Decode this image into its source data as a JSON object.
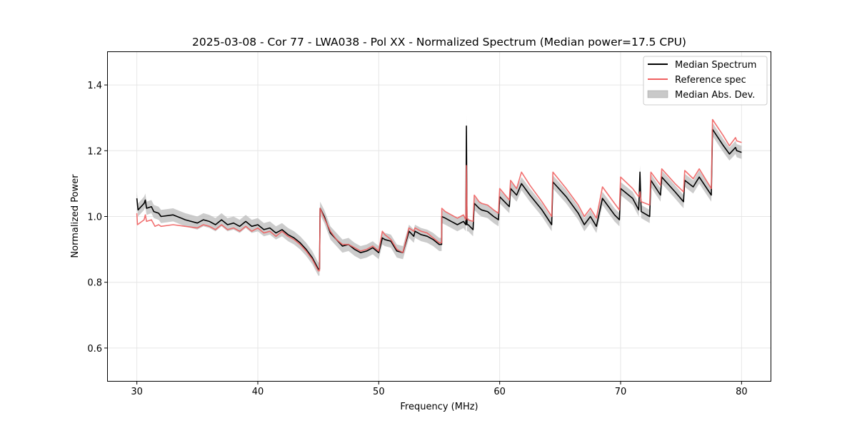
{
  "chart_data": {
    "type": "line",
    "title": "2025-03-08 - Cor 77 - LWA038 - Pol XX - Normalized Spectrum (Median power=17.5 CPU)",
    "xlabel": "Frequency (MHz)",
    "ylabel": "Normalized Power",
    "xlim": [
      27.6,
      82.4
    ],
    "ylim": [
      0.5,
      1.5
    ],
    "xticks": [
      30,
      40,
      50,
      60,
      70,
      80
    ],
    "yticks": [
      0.6,
      0.8,
      1.0,
      1.2,
      1.4
    ],
    "xtick_labels": [
      "30",
      "40",
      "50",
      "60",
      "70",
      "80"
    ],
    "ytick_labels": [
      "0.6",
      "0.8",
      "1.0",
      "1.2",
      "1.4"
    ],
    "grid": true,
    "legend_position": "top-right",
    "colors": {
      "median": "#000000",
      "reference": "#f06060",
      "mad": "#bbbbbb"
    },
    "series": [
      {
        "name": "Median Spectrum",
        "x": [
          30.0,
          30.1,
          30.6,
          30.7,
          30.8,
          31.2,
          31.4,
          31.8,
          32.0,
          33.0,
          34.0,
          35.0,
          35.5,
          36.0,
          36.5,
          37.0,
          37.5,
          38.0,
          38.5,
          39.0,
          39.5,
          40.0,
          40.5,
          41.0,
          41.5,
          42.0,
          42.5,
          43.0,
          43.5,
          44.0,
          44.5,
          45.0,
          45.1,
          45.15,
          45.5,
          46.0,
          46.5,
          47.0,
          47.5,
          48.0,
          48.5,
          49.0,
          49.5,
          50.0,
          50.3,
          50.5,
          51.0,
          51.5,
          52.0,
          52.5,
          52.9,
          53.0,
          53.5,
          54.0,
          54.5,
          55.0,
          55.2,
          55.21,
          55.5,
          56.0,
          56.5,
          57.0,
          57.2,
          57.25,
          57.3,
          57.4,
          57.8,
          57.9,
          58.3,
          58.5,
          59.0,
          59.5,
          59.9,
          60.0,
          60.8,
          60.9,
          61.4,
          61.8,
          62.5,
          63.5,
          64.3,
          64.4,
          65.5,
          66.5,
          67.0,
          67.5,
          68.0,
          68.5,
          69.5,
          69.9,
          70.0,
          71.0,
          71.5,
          71.6,
          71.7,
          72.4,
          72.5,
          73.3,
          73.4,
          74.5,
          75.2,
          75.3,
          76.0,
          76.5,
          77.5,
          77.6,
          78.5,
          79.0,
          79.5,
          79.6,
          80.0
        ],
        "values": [
          1.055,
          1.02,
          1.04,
          1.05,
          1.025,
          1.03,
          1.015,
          1.01,
          1.0,
          1.005,
          0.99,
          0.98,
          0.99,
          0.985,
          0.975,
          0.99,
          0.975,
          0.98,
          0.97,
          0.985,
          0.97,
          0.975,
          0.96,
          0.965,
          0.95,
          0.96,
          0.945,
          0.935,
          0.92,
          0.9,
          0.875,
          0.84,
          0.84,
          1.025,
          1.0,
          0.95,
          0.93,
          0.91,
          0.915,
          0.9,
          0.89,
          0.895,
          0.905,
          0.89,
          0.935,
          0.93,
          0.925,
          0.895,
          0.89,
          0.955,
          0.94,
          0.955,
          0.945,
          0.94,
          0.93,
          0.915,
          0.915,
          1.0,
          0.995,
          0.985,
          0.975,
          0.985,
          0.975,
          1.275,
          0.975,
          0.975,
          0.96,
          1.04,
          1.025,
          1.02,
          1.015,
          1.0,
          0.99,
          1.06,
          1.03,
          1.085,
          1.065,
          1.1,
          1.065,
          1.02,
          0.975,
          1.105,
          1.06,
          1.01,
          0.975,
          1.0,
          0.97,
          1.055,
          1.005,
          0.99,
          1.085,
          1.055,
          1.02,
          1.135,
          1.015,
          1.0,
          1.11,
          1.065,
          1.12,
          1.075,
          1.045,
          1.11,
          1.09,
          1.12,
          1.065,
          1.265,
          1.215,
          1.19,
          1.21,
          1.2,
          1.195
        ]
      },
      {
        "name": "Reference spec",
        "x": [
          30.0,
          30.05,
          30.6,
          30.7,
          30.8,
          31.2,
          31.5,
          31.8,
          32.0,
          33.0,
          34.0,
          35.0,
          35.5,
          36.0,
          36.5,
          37.0,
          37.5,
          38.0,
          38.5,
          39.0,
          39.5,
          40.0,
          40.5,
          41.0,
          41.5,
          42.0,
          42.5,
          43.0,
          43.5,
          44.0,
          44.5,
          45.0,
          45.1,
          45.15,
          45.5,
          46.0,
          46.5,
          47.0,
          47.5,
          48.0,
          48.5,
          49.0,
          49.5,
          50.0,
          50.3,
          50.5,
          51.0,
          51.5,
          52.0,
          52.5,
          52.9,
          53.0,
          53.5,
          54.0,
          54.5,
          55.0,
          55.2,
          55.21,
          55.5,
          56.0,
          56.5,
          57.0,
          57.2,
          57.25,
          57.3,
          57.4,
          57.8,
          57.9,
          58.3,
          58.5,
          59.0,
          59.5,
          59.9,
          60.0,
          60.8,
          60.9,
          61.4,
          61.8,
          62.5,
          63.5,
          64.3,
          64.4,
          65.5,
          66.5,
          67.0,
          67.5,
          68.0,
          68.5,
          69.5,
          69.9,
          70.0,
          71.0,
          71.5,
          71.6,
          71.7,
          72.4,
          72.5,
          73.3,
          73.4,
          74.5,
          75.2,
          75.3,
          76.0,
          76.5,
          77.5,
          77.6,
          78.5,
          79.0,
          79.5,
          79.6,
          80.0
        ],
        "values": [
          1.01,
          0.975,
          0.99,
          1.005,
          0.985,
          0.99,
          0.97,
          0.975,
          0.97,
          0.975,
          0.97,
          0.965,
          0.975,
          0.97,
          0.96,
          0.975,
          0.96,
          0.965,
          0.955,
          0.97,
          0.955,
          0.965,
          0.95,
          0.955,
          0.94,
          0.955,
          0.94,
          0.93,
          0.915,
          0.895,
          0.87,
          0.835,
          0.835,
          1.025,
          0.995,
          0.955,
          0.93,
          0.915,
          0.915,
          0.905,
          0.895,
          0.9,
          0.91,
          0.895,
          0.955,
          0.945,
          0.93,
          0.9,
          0.89,
          0.965,
          0.955,
          0.965,
          0.955,
          0.95,
          0.935,
          0.92,
          0.92,
          1.025,
          1.015,
          1.005,
          0.995,
          1.005,
          0.99,
          1.155,
          0.995,
          0.99,
          0.985,
          1.065,
          1.045,
          1.04,
          1.035,
          1.02,
          1.01,
          1.085,
          1.05,
          1.11,
          1.085,
          1.135,
          1.095,
          1.045,
          1.0,
          1.135,
          1.085,
          1.035,
          1.0,
          1.025,
          0.995,
          1.09,
          1.04,
          1.02,
          1.12,
          1.085,
          1.06,
          1.075,
          1.045,
          1.035,
          1.135,
          1.095,
          1.145,
          1.1,
          1.075,
          1.14,
          1.115,
          1.145,
          1.085,
          1.295,
          1.245,
          1.215,
          1.24,
          1.23,
          1.225
        ]
      },
      {
        "name": "Median Abs. Dev.",
        "kind": "band",
        "note": "shaded band of ±0.02 around median spectrum (wider near spikes)",
        "spread": 0.02
      }
    ]
  }
}
